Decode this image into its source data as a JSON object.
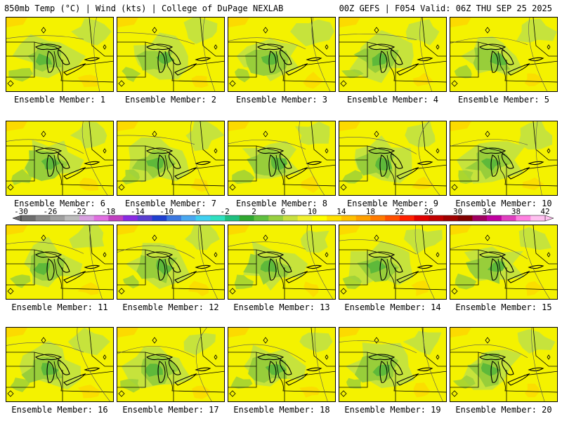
{
  "header": {
    "left_title": "850mb Temp (°C) | Wind (kts) | College of DuPage NEXLAB",
    "right_title": "00Z GEFS | F054 Valid: 06Z THU SEP 25 2025"
  },
  "panels": [
    {
      "label": "Ensemble Member: 1"
    },
    {
      "label": "Ensemble Member: 2"
    },
    {
      "label": "Ensemble Member: 3"
    },
    {
      "label": "Ensemble Member: 4"
    },
    {
      "label": "Ensemble Member: 5"
    },
    {
      "label": "Ensemble Member: 6"
    },
    {
      "label": "Ensemble Member: 7"
    },
    {
      "label": "Ensemble Member: 8"
    },
    {
      "label": "Ensemble Member: 9"
    },
    {
      "label": "Ensemble Member: 10"
    },
    {
      "label": "Ensemble Member: 11"
    },
    {
      "label": "Ensemble Member: 12"
    },
    {
      "label": "Ensemble Member: 13"
    },
    {
      "label": "Ensemble Member: 14"
    },
    {
      "label": "Ensemble Member: 15"
    },
    {
      "label": "Ensemble Member: 16"
    },
    {
      "label": "Ensemble Member: 17"
    },
    {
      "label": "Ensemble Member: 18"
    },
    {
      "label": "Ensemble Member: 19"
    },
    {
      "label": "Ensemble Member: 20"
    }
  ],
  "colorbar": {
    "tick_labels": [
      "-30",
      "-26",
      "-22",
      "-18",
      "-14",
      "-10",
      "-6",
      "-2",
      "2",
      "6",
      "10",
      "14",
      "18",
      "22",
      "26",
      "30",
      "34",
      "38",
      "42"
    ],
    "colors": [
      "#6e6e6e",
      "#8a8a8a",
      "#a0a0a0",
      "#bcbcbc",
      "#d8a0e0",
      "#e070e0",
      "#c040c0",
      "#8a2be2",
      "#5a3fd0",
      "#2040d0",
      "#3c78e0",
      "#4aa8f0",
      "#40d0f0",
      "#30e0c0",
      "#20c080",
      "#30a830",
      "#60c040",
      "#98d040",
      "#c8e040",
      "#f0f030",
      "#ffff00",
      "#ffe000",
      "#ffc000",
      "#ffa000",
      "#ff7a00",
      "#ff5000",
      "#ff2000",
      "#e00000",
      "#c00000",
      "#a00000",
      "#800000",
      "#a00060",
      "#c000a0",
      "#e040c0",
      "#ff80e0",
      "#ffc0f0"
    ]
  },
  "map_colors": {
    "yellow": "#f4f200",
    "light_green": "#c6e33c",
    "mid_green": "#98ce3a",
    "dark_green": "#5eb93a",
    "orange": "#ffd000",
    "land_line": "#000000"
  }
}
